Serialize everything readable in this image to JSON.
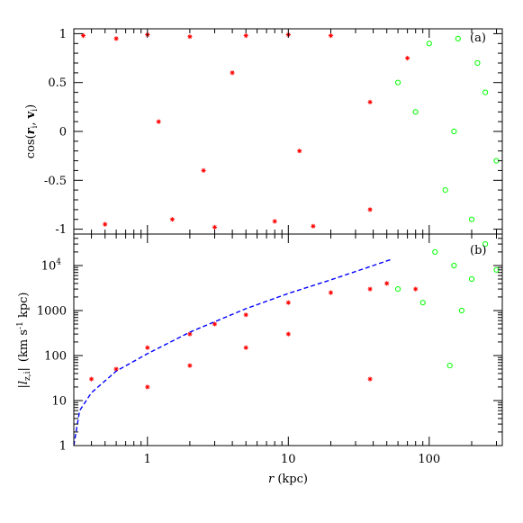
{
  "chart_data": [
    {
      "panel_label": "(a)",
      "type": "scatter",
      "ylabel": "cos(r_i, v_i)",
      "ylabel_parts": {
        "base": "cos(",
        "var1": "r",
        "sub1": "i",
        "sep": ", ",
        "var2": "v",
        "sub2": "i",
        "close": ")"
      },
      "xscale": "log",
      "xlim": [
        0.3,
        330
      ],
      "ylim": [
        -1.05,
        1.05
      ],
      "yticks": [
        {
          "value": -1,
          "label": "-1"
        },
        {
          "value": -0.5,
          "label": "-0.5"
        },
        {
          "value": 0,
          "label": "0"
        },
        {
          "value": 0.5,
          "label": "0.5"
        },
        {
          "value": 1,
          "label": "1"
        }
      ],
      "series": [
        {
          "color": "#ff0000",
          "marker": "star",
          "description": "dense field of points spanning r = 0.3–100 kpc, full range of cos, with a narrow clump at r ≈ 38 kpc and near r ≈ 70 kpc at cos ≈ 0.7",
          "sample": [
            [
              0.35,
              0.98
            ],
            [
              0.6,
              0.95
            ],
            [
              1.0,
              0.99
            ],
            [
              2.0,
              0.97
            ],
            [
              5.0,
              0.98
            ],
            [
              10,
              0.99
            ],
            [
              20,
              0.98
            ],
            [
              0.5,
              -0.95
            ],
            [
              1.5,
              -0.9
            ],
            [
              3,
              -0.98
            ],
            [
              8,
              -0.92
            ],
            [
              15,
              -0.97
            ],
            [
              38,
              -0.8
            ],
            [
              38,
              0.3
            ],
            [
              70,
              0.75
            ],
            [
              1.2,
              0.1
            ],
            [
              2.5,
              -0.4
            ],
            [
              4,
              0.6
            ],
            [
              12,
              -0.2
            ]
          ]
        },
        {
          "color": "#00ff00",
          "marker": "circle",
          "description": "points mostly at r > 40 kpc, concentrated toward r ≈ 150–330 kpc",
          "sample": [
            [
              60,
              0.5
            ],
            [
              80,
              0.2
            ],
            [
              100,
              0.9
            ],
            [
              130,
              -0.6
            ],
            [
              160,
              0.95
            ],
            [
              200,
              -0.9
            ],
            [
              250,
              0.4
            ],
            [
              300,
              -0.3
            ],
            [
              150,
              0
            ],
            [
              220,
              0.7
            ]
          ]
        }
      ]
    },
    {
      "panel_label": "(b)",
      "type": "scatter",
      "ylabel": "|l_z,i| (km s^-1 kpc)",
      "ylabel_parts": {
        "open": "|",
        "var": "l",
        "sub": "z,i",
        "close": "|",
        "unit_a": "(km s",
        "exp": "-1",
        "unit_b": " kpc)"
      },
      "xlabel": "r (kpc)",
      "xlabel_parts": {
        "var": "r",
        "unit": " (kpc)"
      },
      "xscale": "log",
      "yscale": "log",
      "xlim": [
        0.3,
        330
      ],
      "ylim": [
        1,
        50000
      ],
      "xticks": [
        {
          "value": 1,
          "label": "1"
        },
        {
          "value": 10,
          "label": "10"
        },
        {
          "value": 100,
          "label": "100"
        }
      ],
      "yticks": [
        {
          "value": 1,
          "label": "1"
        },
        {
          "value": 10,
          "label": "10"
        },
        {
          "value": 100,
          "label": "100"
        },
        {
          "value": 1000,
          "label": "1000"
        },
        {
          "value": 10000,
          "label": "10",
          "exponent": "4"
        }
      ],
      "series": [
        {
          "color": "#ff0000",
          "marker": "star",
          "description": "band of points rising with r from ~10–100 at 0.4 kpc to ~1000–5000 at 30 kpc, with a vertical clump at r ≈ 38 kpc",
          "sample": [
            [
              0.4,
              30
            ],
            [
              0.6,
              50
            ],
            [
              1,
              150
            ],
            [
              1,
              20
            ],
            [
              2,
              300
            ],
            [
              2,
              60
            ],
            [
              3,
              500
            ],
            [
              5,
              800
            ],
            [
              5,
              150
            ],
            [
              10,
              1500
            ],
            [
              10,
              300
            ],
            [
              20,
              2500
            ],
            [
              38,
              3000
            ],
            [
              38,
              30
            ],
            [
              50,
              4000
            ],
            [
              80,
              3000
            ]
          ]
        },
        {
          "color": "#00ff00",
          "marker": "circle",
          "description": "points at r > 40 kpc, mostly between 1000 and 30000",
          "sample": [
            [
              60,
              3000
            ],
            [
              90,
              1500
            ],
            [
              110,
              20000
            ],
            [
              150,
              10000
            ],
            [
              200,
              5000
            ],
            [
              250,
              30000
            ],
            [
              300,
              8000
            ],
            [
              140,
              60
            ],
            [
              170,
              1000
            ]
          ]
        },
        {
          "color": "#0000ff",
          "marker": "line",
          "line_style": "dashed",
          "description": "upper envelope curve",
          "points": [
            [
              0.3,
              1
            ],
            [
              0.33,
              6
            ],
            [
              0.4,
              15
            ],
            [
              0.6,
              45
            ],
            [
              1,
              110
            ],
            [
              2,
              330
            ],
            [
              5,
              1100
            ],
            [
              10,
              2400
            ],
            [
              20,
              4800
            ],
            [
              40,
              10000
            ],
            [
              55,
              14000
            ]
          ]
        }
      ]
    }
  ]
}
